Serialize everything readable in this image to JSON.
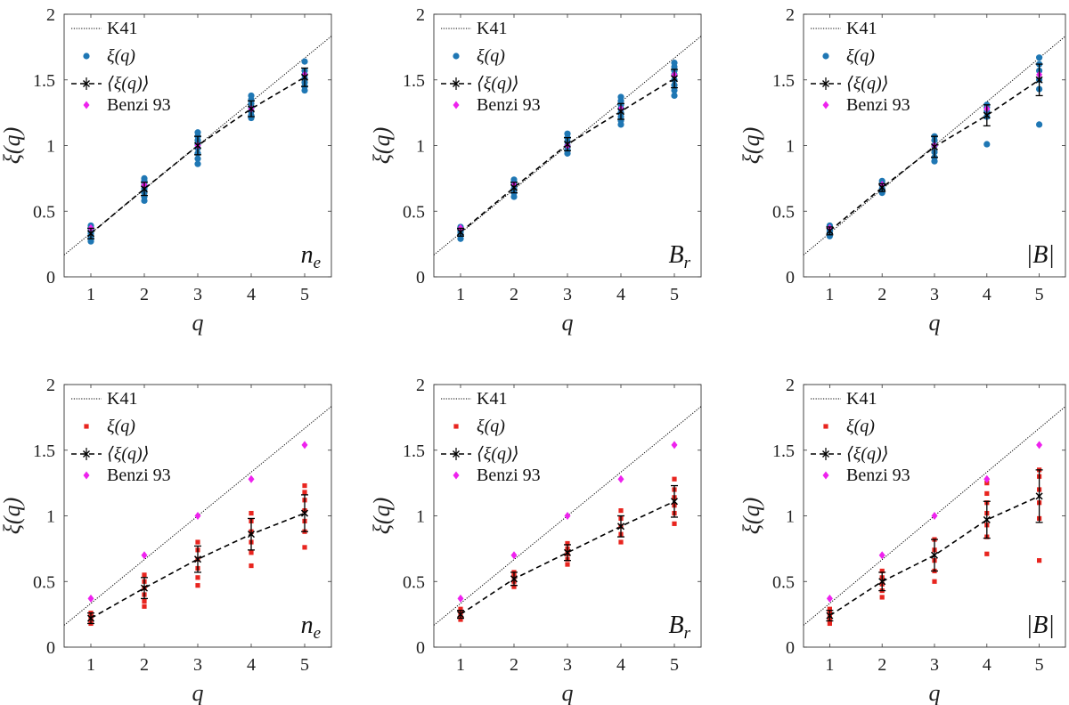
{
  "figure": {
    "tick_labels_x": [
      "1",
      "2",
      "3",
      "4",
      "5"
    ],
    "tick_labels_y": [
      "0",
      "0.5",
      "1",
      "1.5",
      "2"
    ],
    "xlabel": "q",
    "ylabel": "ξ(q)",
    "legend": {
      "k41": "K41",
      "xi": "ξ(q)",
      "mean": "⟨ξ(q)⟩",
      "benzi": "Benzi 93"
    },
    "colors": {
      "top_points": "#1f77b4",
      "bottom_points": "#e8251f",
      "benzi": "#ee22ee",
      "mean": "#000000",
      "k41": "#000000"
    }
  },
  "chart_data": [
    {
      "type": "scatter",
      "row": "top",
      "quantity": "n",
      "quantity_sub": "e",
      "xlim": [
        0.5,
        5.5
      ],
      "ylim": [
        0,
        2
      ],
      "xlabel": "q",
      "ylabel": "ξ(q)",
      "k41": {
        "slope": 0.3333,
        "intercept": 0,
        "x_range": [
          0.5,
          5.5
        ]
      },
      "benzi": {
        "x": [
          1,
          2,
          3,
          4,
          5
        ],
        "y": [
          0.37,
          0.7,
          1.0,
          1.28,
          1.54
        ]
      },
      "mean": {
        "x": [
          1,
          2,
          3,
          4,
          5
        ],
        "y": [
          0.33,
          0.67,
          1.0,
          1.28,
          1.52
        ],
        "err": [
          0.04,
          0.05,
          0.07,
          0.06,
          0.07
        ]
      },
      "points": [
        {
          "x": 1,
          "y": [
            0.27,
            0.29,
            0.31,
            0.33,
            0.35,
            0.37,
            0.39
          ]
        },
        {
          "x": 2,
          "y": [
            0.58,
            0.61,
            0.64,
            0.67,
            0.7,
            0.73,
            0.75
          ]
        },
        {
          "x": 3,
          "y": [
            0.86,
            0.9,
            0.94,
            0.98,
            1.01,
            1.04,
            1.07,
            1.1
          ]
        },
        {
          "x": 4,
          "y": [
            1.21,
            1.23,
            1.26,
            1.29,
            1.32,
            1.35,
            1.38
          ]
        },
        {
          "x": 5,
          "y": [
            1.42,
            1.45,
            1.48,
            1.51,
            1.54,
            1.57,
            1.64
          ]
        }
      ]
    },
    {
      "type": "scatter",
      "row": "top",
      "quantity": "B",
      "quantity_sub": "r",
      "xlim": [
        0.5,
        5.5
      ],
      "ylim": [
        0,
        2
      ],
      "xlabel": "q",
      "ylabel": "ξ(q)",
      "k41": {
        "slope": 0.3333,
        "intercept": 0,
        "x_range": [
          0.5,
          5.5
        ]
      },
      "benzi": {
        "x": [
          1,
          2,
          3,
          4,
          5
        ],
        "y": [
          0.37,
          0.7,
          1.0,
          1.28,
          1.54
        ]
      },
      "mean": {
        "x": [
          1,
          2,
          3,
          4,
          5
        ],
        "y": [
          0.34,
          0.68,
          1.01,
          1.26,
          1.51
        ],
        "err": [
          0.03,
          0.04,
          0.05,
          0.06,
          0.07
        ]
      },
      "points": [
        {
          "x": 1,
          "y": [
            0.29,
            0.32,
            0.34,
            0.36,
            0.38
          ]
        },
        {
          "x": 2,
          "y": [
            0.61,
            0.64,
            0.67,
            0.7,
            0.72,
            0.74
          ]
        },
        {
          "x": 3,
          "y": [
            0.94,
            0.97,
            1.0,
            1.03,
            1.06,
            1.09
          ]
        },
        {
          "x": 4,
          "y": [
            1.16,
            1.19,
            1.22,
            1.25,
            1.28,
            1.31,
            1.34,
            1.37
          ]
        },
        {
          "x": 5,
          "y": [
            1.38,
            1.42,
            1.46,
            1.5,
            1.54,
            1.57,
            1.6,
            1.63
          ]
        }
      ]
    },
    {
      "type": "scatter",
      "row": "top",
      "quantity": "|B|",
      "quantity_sub": "",
      "xlim": [
        0.5,
        5.5
      ],
      "ylim": [
        0,
        2
      ],
      "xlabel": "q",
      "ylabel": "ξ(q)",
      "k41": {
        "slope": 0.3333,
        "intercept": 0,
        "x_range": [
          0.5,
          5.5
        ]
      },
      "benzi": {
        "x": [
          1,
          2,
          3,
          4,
          5
        ],
        "y": [
          0.37,
          0.7,
          1.0,
          1.28,
          1.54
        ]
      },
      "mean": {
        "x": [
          1,
          2,
          3,
          4,
          5
        ],
        "y": [
          0.35,
          0.68,
          0.99,
          1.23,
          1.5
        ],
        "err": [
          0.03,
          0.03,
          0.08,
          0.08,
          0.12
        ]
      },
      "points": [
        {
          "x": 1,
          "y": [
            0.31,
            0.34,
            0.36,
            0.39
          ]
        },
        {
          "x": 2,
          "y": [
            0.64,
            0.67,
            0.7,
            0.73
          ]
        },
        {
          "x": 3,
          "y": [
            0.88,
            0.91,
            0.95,
            1.0,
            1.04,
            1.07
          ]
        },
        {
          "x": 4,
          "y": [
            1.01,
            1.22,
            1.26,
            1.29,
            1.31
          ]
        },
        {
          "x": 5,
          "y": [
            1.16,
            1.43,
            1.5,
            1.57,
            1.62,
            1.67
          ]
        }
      ]
    },
    {
      "type": "scatter",
      "row": "bottom",
      "quantity": "n",
      "quantity_sub": "e",
      "xlim": [
        0.5,
        5.5
      ],
      "ylim": [
        0,
        2
      ],
      "xlabel": "q",
      "ylabel": "ξ(q)",
      "k41": {
        "slope": 0.3333,
        "intercept": 0,
        "x_range": [
          0.5,
          5.5
        ]
      },
      "benzi": {
        "x": [
          1,
          2,
          3,
          4,
          5
        ],
        "y": [
          0.37,
          0.7,
          1.0,
          1.28,
          1.54
        ]
      },
      "mean": {
        "x": [
          1,
          2,
          3,
          4,
          5
        ],
        "y": [
          0.22,
          0.45,
          0.67,
          0.86,
          1.02
        ],
        "err": [
          0.04,
          0.08,
          0.1,
          0.12,
          0.14
        ]
      },
      "points": [
        {
          "x": 1,
          "y": [
            0.18,
            0.2,
            0.22,
            0.24,
            0.26
          ]
        },
        {
          "x": 2,
          "y": [
            0.31,
            0.35,
            0.4,
            0.45,
            0.5,
            0.55
          ]
        },
        {
          "x": 3,
          "y": [
            0.47,
            0.53,
            0.6,
            0.67,
            0.74,
            0.8
          ]
        },
        {
          "x": 4,
          "y": [
            0.62,
            0.72,
            0.8,
            0.88,
            0.96,
            1.02
          ]
        },
        {
          "x": 5,
          "y": [
            0.76,
            0.88,
            0.96,
            1.04,
            1.12,
            1.18,
            1.23
          ]
        }
      ]
    },
    {
      "type": "scatter",
      "row": "bottom",
      "quantity": "B",
      "quantity_sub": "r",
      "xlim": [
        0.5,
        5.5
      ],
      "ylim": [
        0,
        2
      ],
      "xlabel": "q",
      "ylabel": "ξ(q)",
      "k41": {
        "slope": 0.3333,
        "intercept": 0,
        "x_range": [
          0.5,
          5.5
        ]
      },
      "benzi": {
        "x": [
          1,
          2,
          3,
          4,
          5
        ],
        "y": [
          0.37,
          0.7,
          1.0,
          1.28,
          1.54
        ]
      },
      "mean": {
        "x": [
          1,
          2,
          3,
          4,
          5
        ],
        "y": [
          0.25,
          0.52,
          0.72,
          0.92,
          1.11
        ],
        "err": [
          0.03,
          0.05,
          0.06,
          0.08,
          0.12
        ]
      },
      "points": [
        {
          "x": 1,
          "y": [
            0.21,
            0.24,
            0.27,
            0.29
          ]
        },
        {
          "x": 2,
          "y": [
            0.46,
            0.5,
            0.54,
            0.57
          ]
        },
        {
          "x": 3,
          "y": [
            0.63,
            0.67,
            0.71,
            0.75,
            0.79
          ]
        },
        {
          "x": 4,
          "y": [
            0.8,
            0.86,
            0.92,
            0.98,
            1.04
          ]
        },
        {
          "x": 5,
          "y": [
            0.94,
            1.02,
            1.08,
            1.14,
            1.2,
            1.28
          ]
        }
      ]
    },
    {
      "type": "scatter",
      "row": "bottom",
      "quantity": "|B|",
      "quantity_sub": "",
      "xlim": [
        0.5,
        5.5
      ],
      "ylim": [
        0,
        2
      ],
      "xlabel": "q",
      "ylabel": "ξ(q)",
      "k41": {
        "slope": 0.3333,
        "intercept": 0,
        "x_range": [
          0.5,
          5.5
        ]
      },
      "benzi": {
        "x": [
          1,
          2,
          3,
          4,
          5
        ],
        "y": [
          0.37,
          0.7,
          1.0,
          1.28,
          1.54
        ]
      },
      "mean": {
        "x": [
          1,
          2,
          3,
          4,
          5
        ],
        "y": [
          0.24,
          0.5,
          0.7,
          0.97,
          1.15
        ],
        "err": [
          0.04,
          0.07,
          0.12,
          0.14,
          0.2
        ]
      },
      "points": [
        {
          "x": 1,
          "y": [
            0.18,
            0.21,
            0.24,
            0.27,
            0.29
          ]
        },
        {
          "x": 2,
          "y": [
            0.38,
            0.43,
            0.48,
            0.53,
            0.58
          ]
        },
        {
          "x": 3,
          "y": [
            0.5,
            0.58,
            0.66,
            0.74,
            0.82
          ]
        },
        {
          "x": 4,
          "y": [
            0.71,
            0.84,
            0.93,
            1.02,
            1.1,
            1.17,
            1.25
          ]
        },
        {
          "x": 5,
          "y": [
            0.66,
            0.98,
            1.1,
            1.2,
            1.3,
            1.35
          ]
        }
      ]
    }
  ]
}
